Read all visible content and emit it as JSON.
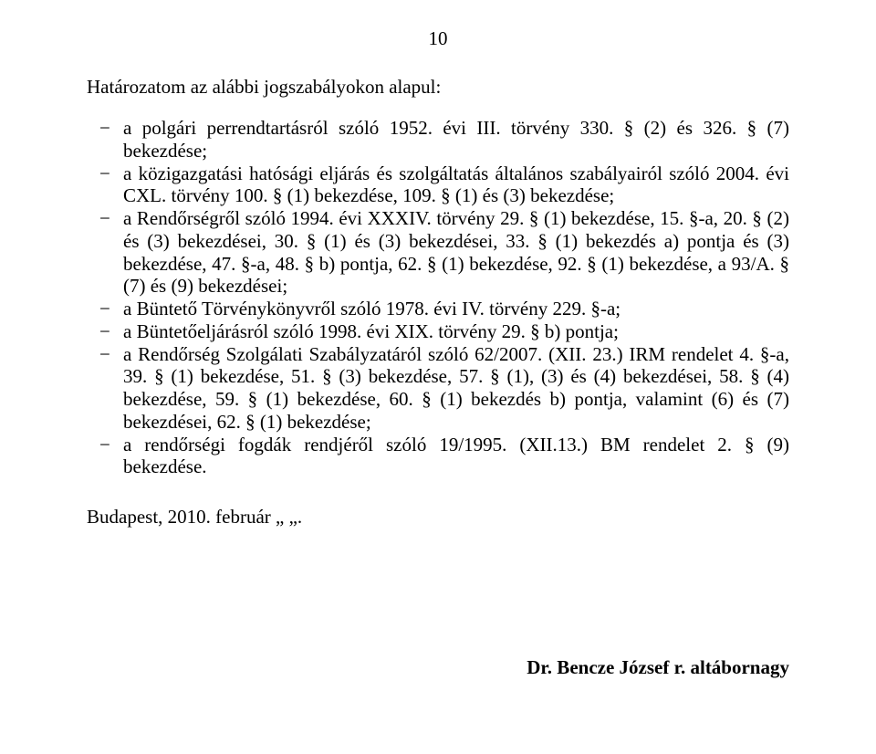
{
  "page_number": "10",
  "intro": "Határozatom az alábbi jogszabályokon alapul:",
  "items": [
    "a polgári perrendtartásról szóló 1952. évi III. törvény 330. § (2) és 326. § (7) bekezdése;",
    "a közigazgatási hatósági eljárás és szolgáltatás általános szabályairól szóló 2004. évi CXL. törvény 100. § (1) bekezdése, 109. § (1) és (3) bekezdése;",
    "a Rendőrségről szóló 1994. évi XXXIV. törvény 29. § (1) bekezdése, 15. §-a, 20. § (2) és (3) bekezdései, 30. § (1) és (3) bekezdései, 33. § (1) bekezdés a) pontja és (3) bekezdése, 47. §-a, 48. § b) pontja, 62. § (1) bekezdése, 92. § (1) bekezdése, a 93/A. § (7) és (9) bekezdései;",
    "a Büntető Törvénykönyvről szóló 1978. évi IV. törvény 229. §-a;",
    "a Büntetőeljárásról szóló 1998. évi XIX. törvény 29. § b) pontja;",
    "a Rendőrség Szolgálati Szabályzatáról szóló 62/2007. (XII. 23.) IRM rendelet 4. §-a, 39. § (1) bekezdése, 51. § (3) bekezdése, 57. § (1), (3) és (4) bekezdései, 58. § (4) bekezdése, 59. § (1) bekezdése, 60. § (1) bekezdés b) pontja, valamint (6) és (7) bekezdései, 62. § (1) bekezdése;",
    "a rendőrségi fogdák rendjéről szóló 19/1995. (XII.13.) BM rendelet 2. § (9) bekezdése."
  ],
  "closing": "Budapest, 2010. február „     „.",
  "signature": "Dr. Bencze József r. altábornagy"
}
